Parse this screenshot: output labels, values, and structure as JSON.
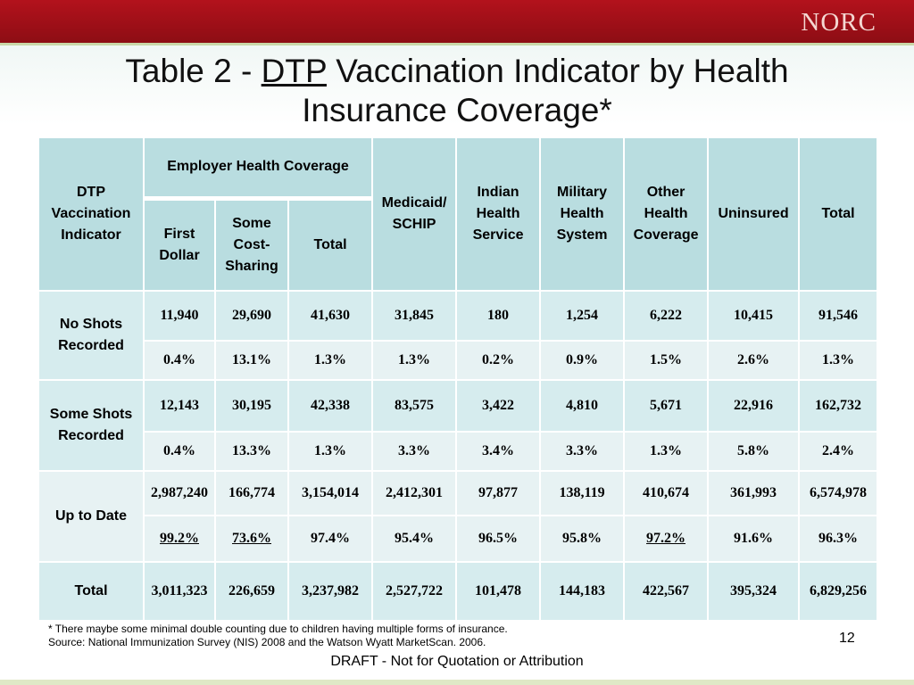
{
  "header": {
    "logo": "NORC"
  },
  "title": {
    "prefix": "Table 2 - ",
    "underlined": "DTP",
    "line1_rest": " Vaccination Indicator by Health",
    "line2": "Insurance Coverage*"
  },
  "table": {
    "corner": "DTP Vaccination Indicator",
    "employer_group": "Employer Health Coverage",
    "columns": {
      "first_dollar": "First Dollar",
      "some_cost_sharing": "Some Cost-Sharing",
      "emp_total": "Total",
      "medicaid": "Medicaid/ SCHIP",
      "indian": "Indian Health Service",
      "military": "Military Health System",
      "other": "Other Health Coverage",
      "uninsured": "Uninsured",
      "total": "Total"
    },
    "rows": {
      "no_shots": {
        "label": "No Shots Recorded",
        "counts": [
          "11,940",
          "29,690",
          "41,630",
          "31,845",
          "180",
          "1,254",
          "6,222",
          "10,415",
          "91,546"
        ],
        "pcts": [
          "0.4%",
          "13.1%",
          "1.3%",
          "1.3%",
          "0.2%",
          "0.9%",
          "1.5%",
          "2.6%",
          "1.3%"
        ]
      },
      "some_shots": {
        "label": "Some Shots Recorded",
        "counts": [
          "12,143",
          "30,195",
          "42,338",
          "83,575",
          "3,422",
          "4,810",
          "5,671",
          "22,916",
          "162,732"
        ],
        "pcts": [
          "0.4%",
          "13.3%",
          "1.3%",
          "3.3%",
          "3.4%",
          "3.3%",
          "1.3%",
          "5.8%",
          "2.4%"
        ]
      },
      "up_to_date": {
        "label": "Up to Date",
        "counts": [
          "2,987,240",
          "166,774",
          "3,154,014",
          "2,412,301",
          "97,877",
          "138,119",
          "410,674",
          "361,993",
          "6,574,978"
        ],
        "pcts": [
          "99.2%",
          "73.6%",
          "97.4%",
          "95.4%",
          "96.5%",
          "95.8%",
          "97.2%",
          "91.6%",
          "96.3%"
        ]
      },
      "total": {
        "label": "Total",
        "counts": [
          "3,011,323",
          "226,659",
          "3,237,982",
          "2,527,722",
          "101,478",
          "144,183",
          "422,567",
          "395,324",
          "6,829,256"
        ]
      }
    },
    "highlight_color": "#d01818"
  },
  "footnote": {
    "line1": "* There maybe some minimal double counting due to children having multiple forms of insurance.",
    "line2": "Source: National Immunization Survey (NIS) 2008 and the Watson Wyatt MarketScan. 2006."
  },
  "page_number": "12",
  "draft_notice": "DRAFT - Not for Quotation or Attribution"
}
